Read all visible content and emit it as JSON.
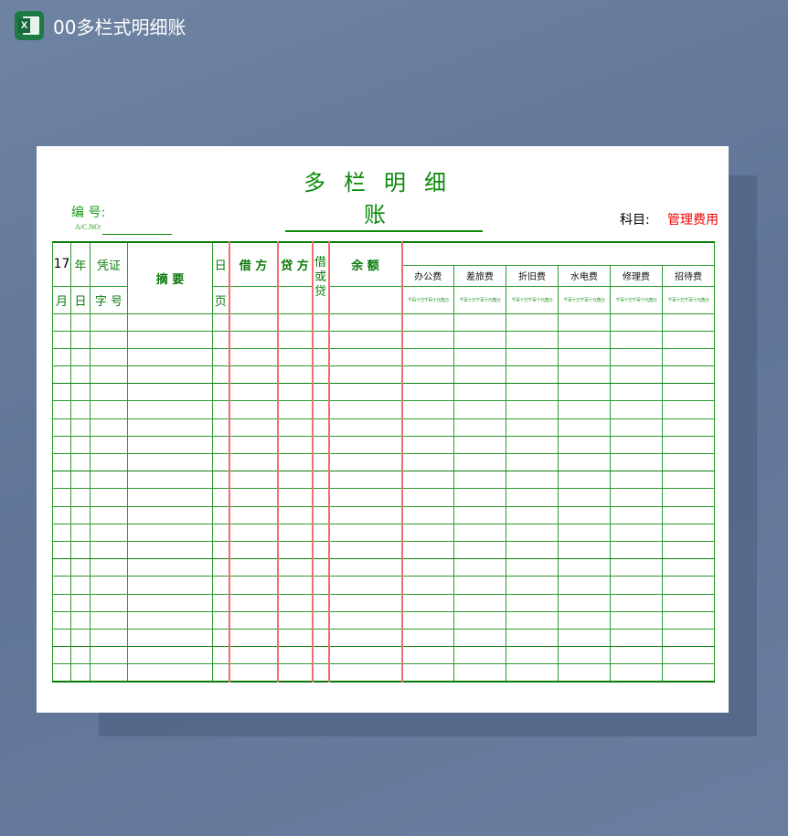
{
  "window": {
    "title": "00多栏式明细账",
    "icon": "excel-icon"
  },
  "doc": {
    "title": "多栏明细账",
    "code_label": "编 号:",
    "acno_label": "A/C.NO:",
    "subject_label": "科目:",
    "subject_value": "管理费用"
  },
  "header": {
    "month_num": "17",
    "year": "年",
    "voucher": "凭证",
    "summary": "摘 要",
    "day_page_top": "日",
    "debit": "借 方",
    "credit": "贷 方",
    "dir": "借或贷",
    "balance": "余 额",
    "month": "月",
    "day": "日",
    "voucher_no": "字 号",
    "page": "页",
    "categories": [
      "办公费",
      "差旅费",
      "折旧费",
      "水电费",
      "修理费",
      "招待费"
    ],
    "digit_label": "千百十万千百十元角分"
  },
  "colors": {
    "green": "#0a7a0a",
    "red_border": "#f07070",
    "subject": "#e00000"
  },
  "body_rows": 21
}
